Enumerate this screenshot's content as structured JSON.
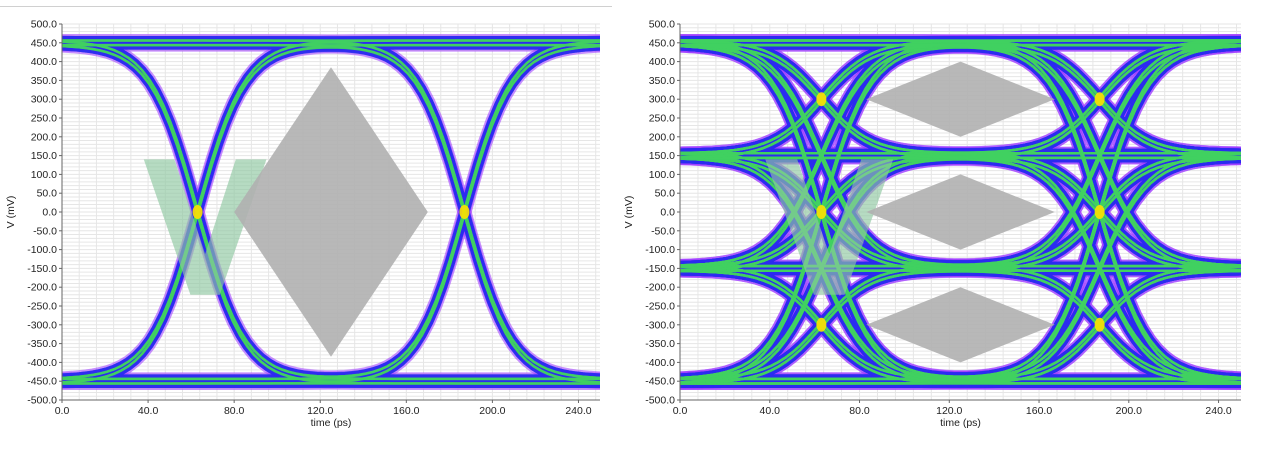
{
  "chart_data": [
    {
      "type": "eye-diagram",
      "modulation": "NRZ",
      "xlabel": "time (ps)",
      "ylabel": "V (mV)",
      "xlim": [
        0,
        250
      ],
      "ylim": [
        -500,
        500
      ],
      "x_ticks": [
        "0.0",
        "40.0",
        "80.0",
        "120.0",
        "160.0",
        "200.0",
        "240.0"
      ],
      "y_ticks": [
        "500.0",
        "450.0",
        "400.0",
        "350.0",
        "300.0",
        "250.0",
        "200.0",
        "150.0",
        "100.0",
        "50.0",
        "0.0",
        "-50.0",
        "-100.0",
        "-150.0",
        "-200.0",
        "-250.0",
        "-300.0",
        "-350.0",
        "-400.0",
        "-450.0",
        "-500.0"
      ],
      "levels_mV": [
        -450,
        450
      ],
      "crossings_ps": [
        63,
        187
      ],
      "crossing_level_mV": 0,
      "eye_mask": {
        "center_ps": 125,
        "center_mV": 0,
        "half_width_ps": 45,
        "half_height_mV": 385
      },
      "watermark": "V"
    },
    {
      "type": "eye-diagram",
      "modulation": "PAM4",
      "xlabel": "time (ps)",
      "ylabel": "V (mV)",
      "xlim": [
        0,
        250
      ],
      "ylim": [
        -500,
        500
      ],
      "x_ticks": [
        "0.0",
        "40.0",
        "80.0",
        "120.0",
        "160.0",
        "200.0",
        "240.0"
      ],
      "y_ticks": [
        "500.0",
        "450.0",
        "400.0",
        "350.0",
        "300.0",
        "250.0",
        "200.0",
        "150.0",
        "100.0",
        "50.0",
        "0.0",
        "-50.0",
        "-100.0",
        "-150.0",
        "-200.0",
        "-250.0",
        "-300.0",
        "-350.0",
        "-400.0",
        "-450.0",
        "-500.0"
      ],
      "levels_mV": [
        -450,
        -150,
        150,
        450
      ],
      "crossings_ps": [
        63,
        187
      ],
      "eye_masks": [
        {
          "center_ps": 125,
          "center_mV": 300,
          "half_width_ps": 42,
          "half_height_mV": 100
        },
        {
          "center_ps": 125,
          "center_mV": 0,
          "half_width_ps": 42,
          "half_height_mV": 100
        },
        {
          "center_ps": 125,
          "center_mV": -300,
          "half_width_ps": 42,
          "half_height_mV": 100
        }
      ],
      "watermark": "V"
    }
  ],
  "colors": {
    "trace_blue": "#2b2bf0",
    "trace_purple": "#a040ff",
    "trace_green": "#40d060",
    "trace_yellow": "#ffe000",
    "mask_gray": "#b0b0b0",
    "mask_dark": "#555555",
    "watermark_green": "#8fc8a2",
    "grid": "#e6e6e6"
  }
}
